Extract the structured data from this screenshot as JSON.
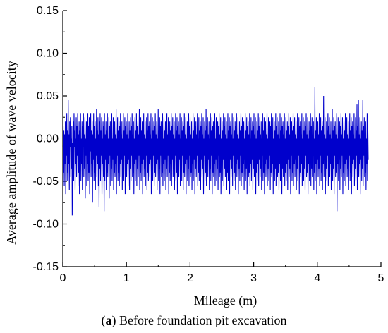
{
  "caption": {
    "letter_open": "(",
    "letter": "a",
    "letter_close": ")",
    "text": " Before foundation pit excavation"
  },
  "chart_data": {
    "type": "line",
    "xlabel": "Mileage (m)",
    "ylabel": "Average amplitude of wave velocity",
    "xlim": [
      0,
      5
    ],
    "ylim": [
      -0.15,
      0.15
    ],
    "xticks": [
      0,
      1,
      2,
      3,
      4,
      5
    ],
    "yticks": [
      -0.15,
      -0.1,
      -0.05,
      0.0,
      0.05,
      0.1,
      0.15
    ],
    "ytick_labels": [
      "-0.15",
      "-0.10",
      "-0.05",
      "0.00",
      "0.05",
      "0.10",
      "0.15"
    ],
    "grid": false,
    "line_color": "#0000cc",
    "series": [
      {
        "x_start": 0.0,
        "x_end": 4.8,
        "values": [
          -0.01,
          0.015,
          -0.04,
          0.01,
          -0.055,
          0.005,
          -0.03,
          0.02,
          -0.065,
          0.0,
          -0.02,
          0.03,
          -0.05,
          0.01,
          -0.04,
          0.045,
          -0.03,
          0.005,
          -0.06,
          0.02,
          -0.01,
          0.025,
          -0.045,
          0.0,
          -0.035,
          0.015,
          -0.09,
          -0.005,
          -0.02,
          0.02,
          -0.05,
          0.03,
          -0.01,
          0.01,
          -0.06,
          0.0,
          -0.03,
          0.025,
          -0.045,
          0.015,
          -0.02,
          0.03,
          -0.055,
          0.005,
          -0.04,
          0.02,
          -0.065,
          0.01,
          -0.025,
          0.03,
          -0.05,
          0.0,
          -0.03,
          0.02,
          -0.06,
          0.015,
          -0.01,
          0.03,
          -0.045,
          0.005,
          -0.035,
          0.025,
          -0.07,
          0.0,
          -0.02,
          0.02,
          -0.055,
          0.01,
          -0.03,
          0.03,
          -0.05,
          0.015,
          -0.04,
          0.025,
          -0.065,
          0.0,
          -0.015,
          0.03,
          -0.045,
          0.01,
          -0.03,
          0.02,
          -0.075,
          0.005,
          -0.025,
          0.03,
          -0.05,
          0.015,
          -0.04,
          0.02,
          -0.06,
          0.0,
          -0.02,
          0.035,
          -0.045,
          0.01,
          -0.03,
          0.025,
          -0.055,
          0.005,
          -0.08,
          0.02,
          -0.035,
          0.03,
          -0.05,
          0.01,
          -0.02,
          0.025,
          -0.065,
          0.0,
          -0.03,
          0.02,
          -0.045,
          0.015,
          -0.085,
          0.03,
          -0.05,
          0.005,
          -0.025,
          0.02,
          -0.06,
          0.01,
          -0.04,
          0.03,
          -0.045,
          0.0,
          -0.03,
          0.025,
          -0.07,
          0.015,
          -0.02,
          0.02,
          -0.055,
          0.01,
          -0.035,
          0.03,
          -0.05,
          0.0,
          -0.025,
          0.025,
          -0.06,
          0.015,
          -0.04,
          0.02,
          -0.045,
          0.005,
          -0.03,
          0.035,
          -0.065,
          0.0,
          -0.02,
          0.025,
          -0.05,
          0.01,
          -0.04,
          0.02,
          -0.055,
          0.015,
          -0.03,
          0.03,
          -0.045,
          0.005,
          -0.025,
          0.02,
          -0.06,
          0.0,
          -0.035,
          0.03,
          -0.05,
          0.01,
          -0.02,
          0.025,
          -0.065,
          0.015,
          -0.04,
          0.02,
          -0.045,
          0.005,
          -0.03,
          0.03,
          -0.055,
          0.0,
          -0.025,
          0.02,
          -0.06,
          0.01,
          -0.035,
          0.025,
          -0.05,
          0.015,
          -0.02,
          0.03,
          -0.045,
          0.005,
          -0.04,
          0.02,
          -0.065,
          0.0,
          -0.03,
          0.025,
          -0.05,
          0.01,
          -0.025,
          0.03,
          -0.055,
          0.015,
          -0.035,
          0.02,
          -0.045,
          0.005,
          -0.02,
          0.035,
          -0.06,
          0.0,
          -0.04,
          0.025,
          -0.05,
          0.01,
          -0.03,
          0.02,
          -0.065,
          0.015,
          -0.025,
          0.03,
          -0.045,
          0.005,
          -0.035,
          0.02,
          -0.055,
          0.0,
          -0.02,
          0.025,
          -0.06,
          0.01,
          -0.04,
          0.03,
          -0.05,
          0.015,
          -0.03,
          0.02,
          -0.045,
          0.005,
          -0.025,
          0.03,
          -0.065,
          0.0,
          -0.035,
          0.025,
          -0.05,
          0.01,
          -0.02,
          0.02,
          -0.055,
          0.015,
          -0.04,
          0.03,
          -0.045,
          0.005,
          -0.03,
          0.02,
          -0.06,
          0.0,
          -0.025,
          0.035,
          -0.05,
          0.01,
          -0.035,
          0.025,
          -0.065,
          0.015,
          -0.02,
          0.02,
          -0.045,
          0.005,
          -0.04,
          0.03,
          -0.055,
          0.0,
          -0.03,
          0.025,
          -0.05,
          0.01,
          -0.025,
          0.02,
          -0.06,
          0.015,
          -0.035,
          0.03,
          -0.045,
          0.005,
          -0.02,
          0.025,
          -0.065,
          0.0,
          -0.04,
          0.02,
          -0.05,
          0.01,
          -0.03,
          0.03,
          -0.055,
          0.015,
          -0.025,
          0.025,
          -0.045,
          0.005,
          -0.035,
          0.02,
          -0.06,
          0.0,
          -0.02,
          0.03,
          -0.05,
          0.01,
          -0.04,
          0.025,
          -0.065,
          0.015,
          -0.03,
          0.02,
          -0.045,
          0.005,
          -0.025,
          0.03,
          -0.055,
          0.0,
          -0.035,
          0.025,
          -0.05,
          0.01,
          -0.02,
          0.02,
          -0.06,
          0.015,
          -0.04,
          0.03,
          -0.045,
          0.005,
          -0.03,
          0.025,
          -0.065,
          0.0,
          -0.025,
          0.02,
          -0.05,
          0.01,
          -0.035,
          0.03,
          -0.055,
          0.015,
          -0.02,
          0.025,
          -0.045,
          0.005,
          -0.04,
          0.02,
          -0.06,
          0.0,
          -0.03,
          0.03,
          -0.05,
          0.01,
          -0.025,
          0.025,
          -0.065,
          0.015,
          -0.035,
          0.02,
          -0.045,
          0.005,
          -0.02,
          0.03,
          -0.055,
          0.0,
          -0.04,
          0.025,
          -0.05,
          0.01,
          -0.03,
          0.02,
          -0.06,
          0.015,
          -0.025,
          0.03,
          -0.045,
          0.005,
          -0.035,
          0.025,
          -0.065,
          0.0,
          -0.02,
          0.02,
          -0.05,
          0.01,
          -0.04,
          0.035,
          -0.055,
          0.015,
          -0.03,
          0.025,
          -0.045,
          0.005,
          -0.025,
          0.02,
          -0.06,
          0.0,
          -0.035,
          0.03,
          -0.05,
          0.01,
          -0.02,
          0.025,
          -0.065,
          0.015,
          -0.04,
          0.02,
          -0.045,
          0.005,
          -0.03,
          0.03,
          -0.055,
          0.0,
          -0.025,
          0.025,
          -0.05,
          0.01,
          -0.035,
          0.02,
          -0.06,
          0.015,
          -0.02,
          0.03,
          -0.045,
          0.005,
          -0.04,
          0.025,
          -0.065,
          0.0,
          -0.03,
          0.02,
          -0.05,
          0.01,
          -0.025,
          0.03,
          -0.055,
          0.015,
          -0.035,
          0.025,
          -0.045,
          0.005,
          -0.02,
          0.02,
          -0.06,
          0.0,
          -0.04,
          0.03,
          -0.05,
          0.01,
          -0.03,
          0.025,
          -0.065,
          0.015,
          -0.025,
          0.02,
          -0.045,
          0.005,
          -0.035,
          0.03,
          -0.055,
          0.0,
          -0.02,
          0.025,
          -0.05,
          0.01,
          -0.04,
          0.02,
          -0.06,
          0.015,
          -0.03,
          0.03,
          -0.045,
          0.005,
          -0.025,
          0.025,
          -0.065,
          0.0,
          -0.035,
          0.02,
          -0.05,
          0.01,
          -0.02,
          0.03,
          -0.055,
          0.015,
          -0.04,
          0.025,
          -0.045,
          0.005,
          -0.03,
          0.02,
          -0.06,
          0.0,
          -0.025,
          0.03,
          -0.05,
          0.01,
          -0.035,
          0.025,
          -0.065,
          0.015,
          -0.02,
          0.02,
          -0.045,
          0.005,
          -0.04,
          0.03,
          -0.055,
          0.0,
          -0.03,
          0.025,
          -0.05,
          0.01,
          -0.025,
          0.02,
          -0.06,
          0.015,
          -0.035,
          0.03,
          -0.045,
          0.005,
          -0.02,
          0.025,
          -0.065,
          0.0,
          -0.04,
          0.02,
          -0.05,
          0.01,
          -0.03,
          0.03,
          -0.055,
          0.015,
          -0.025,
          0.025,
          -0.045,
          0.005,
          -0.035,
          0.02,
          -0.06,
          0.0,
          -0.02,
          0.03,
          -0.05,
          0.01,
          -0.04,
          0.025,
          -0.065,
          0.015,
          -0.03,
          0.02,
          -0.045,
          0.005,
          -0.025,
          0.03,
          -0.055,
          0.0,
          -0.035,
          0.025,
          -0.05,
          0.01,
          -0.02,
          0.02,
          -0.06,
          0.015,
          -0.04,
          0.03,
          -0.045,
          0.005,
          -0.03,
          0.025,
          -0.065,
          0.0,
          -0.025,
          0.02,
          -0.05,
          0.01,
          -0.035,
          0.03,
          -0.055,
          0.015,
          -0.02,
          0.025,
          -0.045,
          0.005,
          -0.04,
          0.02,
          -0.06,
          0.0,
          -0.03,
          0.03,
          -0.05,
          0.01,
          -0.025,
          0.025,
          -0.065,
          0.015,
          -0.035,
          0.02,
          -0.045,
          0.005,
          -0.02,
          0.03,
          -0.055,
          0.0,
          -0.04,
          0.025,
          -0.05,
          0.01,
          -0.03,
          0.02,
          -0.06,
          0.015,
          -0.025,
          0.03,
          -0.045,
          0.005,
          -0.035,
          0.025,
          -0.065,
          0.0,
          -0.02,
          0.02,
          -0.05,
          0.01,
          -0.04,
          0.03,
          -0.055,
          0.015,
          -0.03,
          0.025,
          -0.045,
          0.005,
          -0.025,
          0.02,
          -0.06,
          0.0,
          -0.035,
          0.03,
          -0.05,
          0.01,
          -0.02,
          0.025,
          -0.065,
          0.015,
          -0.04,
          0.02,
          -0.045,
          0.005,
          -0.03,
          0.03,
          -0.055,
          0.0,
          -0.025,
          0.025,
          -0.05,
          0.01,
          -0.035,
          0.02,
          -0.06,
          0.015,
          -0.02,
          0.03,
          -0.045,
          0.005,
          -0.04,
          0.025,
          -0.065,
          0.0,
          -0.03,
          0.02,
          -0.05,
          0.01,
          -0.025,
          0.03,
          -0.055,
          0.015,
          -0.035,
          0.025,
          -0.045,
          0.005,
          -0.02,
          0.02,
          -0.06,
          0.0,
          -0.04,
          0.06,
          -0.05,
          0.01,
          -0.03,
          0.025,
          -0.065,
          0.015,
          -0.025,
          0.02,
          -0.045,
          0.005,
          -0.035,
          0.03,
          -0.055,
          0.0,
          -0.02,
          0.025,
          -0.05,
          0.01,
          -0.04,
          0.02,
          -0.06,
          0.015,
          -0.03,
          0.05,
          -0.045,
          0.005,
          -0.025,
          0.025,
          -0.065,
          0.0,
          -0.035,
          0.02,
          -0.05,
          0.01,
          -0.02,
          0.03,
          -0.055,
          0.015,
          -0.04,
          0.025,
          -0.045,
          0.005,
          -0.03,
          0.02,
          -0.06,
          0.0,
          -0.025,
          0.035,
          -0.05,
          0.01,
          -0.035,
          0.025,
          -0.065,
          0.015,
          -0.02,
          0.02,
          -0.045,
          0.005,
          -0.04,
          0.03,
          -0.085,
          0.0,
          -0.03,
          0.025,
          -0.05,
          0.01,
          -0.025,
          0.02,
          -0.06,
          0.015,
          -0.035,
          0.03,
          -0.045,
          0.005,
          -0.02,
          0.025,
          -0.065,
          0.0,
          -0.04,
          0.02,
          -0.05,
          0.01,
          -0.03,
          0.03,
          -0.055,
          0.015,
          -0.025,
          0.025,
          -0.045,
          0.005,
          -0.035,
          0.02,
          -0.06,
          0.0,
          -0.02,
          0.03,
          -0.05,
          0.01,
          -0.04,
          0.025,
          -0.065,
          0.015,
          -0.03,
          0.02,
          -0.045,
          0.005,
          -0.025,
          0.03,
          -0.055,
          0.0,
          -0.035,
          0.025,
          -0.05,
          0.01,
          -0.02,
          0.04,
          -0.06,
          0.015,
          -0.04,
          0.045,
          -0.045,
          0.005,
          -0.03,
          0.025,
          -0.065,
          0.0,
          -0.025,
          0.02,
          -0.05,
          0.01,
          -0.035,
          0.045,
          -0.055,
          0.015,
          -0.02,
          0.025,
          -0.045,
          0.005,
          -0.04,
          0.02,
          -0.06,
          0.0,
          -0.03,
          0.03,
          -0.05,
          0.01,
          -0.025
        ]
      }
    ]
  }
}
